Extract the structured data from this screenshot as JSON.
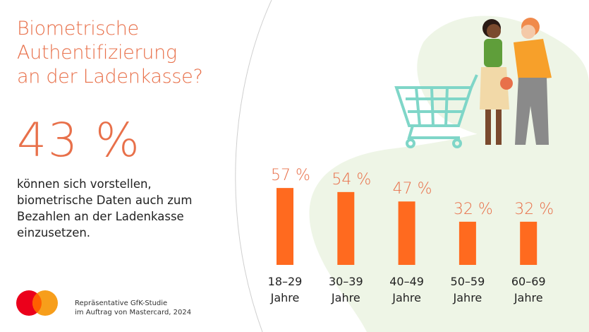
{
  "title_lines": [
    "Biometrische",
    "Authentifizierung",
    "an der Ladenkasse?"
  ],
  "headline_value": "43 %",
  "description_lines": [
    "können sich vorstellen,",
    "biometrische Daten auch zum",
    "Bezahlen an der Ladenkasse",
    "einzusetzen."
  ],
  "source_lines": [
    "Repräsentative GfK-Studie",
    "im Auftrag von Mastercard, 2024"
  ],
  "logo": {
    "brand": "Mastercard",
    "colors": [
      "#eb001b",
      "#f79e1b",
      "#ff5f00"
    ]
  },
  "colors": {
    "accent": "#e8704a",
    "bar": "#ff6a1f",
    "background_blob": "#eef5e6"
  },
  "chart_data": {
    "type": "bar",
    "categories": [
      [
        "18–29",
        "Jahre"
      ],
      [
        "30–39",
        "Jahre"
      ],
      [
        "40–49",
        "Jahre"
      ],
      [
        "50–59",
        "Jahre"
      ],
      [
        "60–69",
        "Jahre"
      ]
    ],
    "values": [
      57,
      54,
      47,
      32,
      32
    ],
    "data_labels": [
      "57 %",
      "54 %",
      "47 %",
      "32 %",
      "32 %"
    ],
    "unit": "%",
    "ylim": [
      0,
      100
    ],
    "grid": false,
    "axes_visible": false
  }
}
